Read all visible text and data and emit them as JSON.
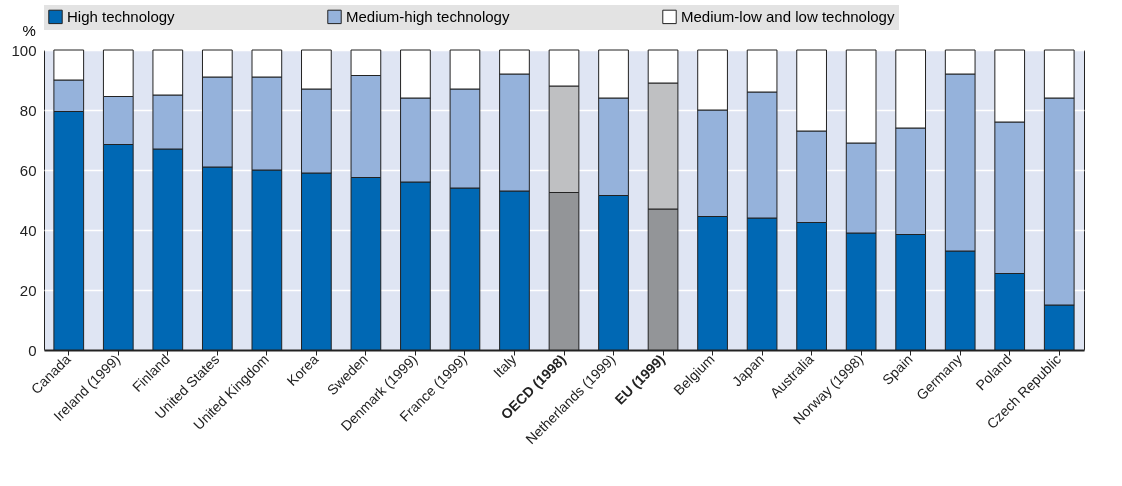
{
  "chart_data": {
    "type": "bar",
    "stacked": true,
    "ylabel": "%",
    "legend": "top",
    "categories": [
      "Canada",
      "Ireland (1999)",
      "Finland",
      "United States",
      "United Kingdom",
      "Korea",
      "Sweden",
      "Denmark (1999)",
      "France (1999)",
      "Italy",
      "OECD (1998)",
      "Netherlands (1999)",
      "EU (1999)",
      "Belgium",
      "Japan",
      "Australia",
      "Norway (1998)",
      "Spain",
      "Germany",
      "Poland",
      "Czech Republic"
    ],
    "series": [
      {
        "name": "High technology",
        "color": "#0068b4",
        "colors": [
          "#0068b4",
          "#0068b4",
          "#0068b4",
          "#0068b4",
          "#0068b4",
          "#0068b4",
          "#0068b4",
          "#0068b4",
          "#0068b4",
          "#0068b4",
          "#939598",
          "#0068b4",
          "#939598",
          "#0068b4",
          "#0068b4",
          "#0068b4",
          "#0068b4",
          "#0068b4",
          "#0068b4",
          "#0068b4",
          "#0068b4"
        ],
        "values": [
          79.5,
          68.5,
          67,
          61,
          60,
          59,
          57.5,
          56,
          54,
          53,
          52.5,
          51.5,
          47,
          44.5,
          44,
          42.5,
          39,
          38.5,
          33,
          25.5,
          15
        ]
      },
      {
        "name": "Medium-high technology",
        "color": "#95b2db",
        "colors": [
          "#95b2db",
          "#95b2db",
          "#95b2db",
          "#95b2db",
          "#95b2db",
          "#95b2db",
          "#95b2db",
          "#95b2db",
          "#95b2db",
          "#95b2db",
          "#bfc0c2",
          "#95b2db",
          "#bfc0c2",
          "#95b2db",
          "#95b2db",
          "#95b2db",
          "#95b2db",
          "#95b2db",
          "#95b2db",
          "#95b2db",
          "#95b2db"
        ],
        "values": [
          10.5,
          16,
          18,
          30,
          31,
          28,
          34,
          28,
          33,
          39,
          35.5,
          32.5,
          42,
          35.5,
          42,
          30.5,
          30,
          35.5,
          59,
          50.5,
          69
        ]
      },
      {
        "name": "Medium-low and low technology",
        "color": "#ffffff",
        "values": [
          10,
          15.5,
          15,
          9,
          9,
          13,
          8.5,
          16,
          13,
          8,
          12,
          16,
          11,
          20,
          14,
          27,
          31,
          26,
          8,
          24,
          16
        ]
      }
    ],
    "ylim": [
      0,
      100
    ],
    "yticks": [
      0,
      20,
      40,
      60,
      80,
      100
    ],
    "grid": "y"
  }
}
